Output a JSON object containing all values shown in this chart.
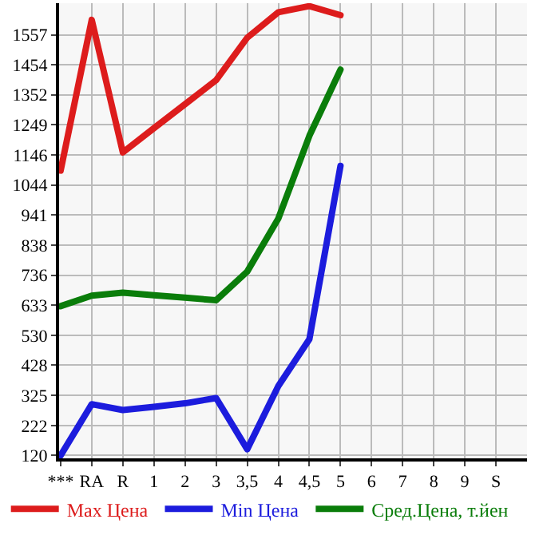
{
  "chart_data": {
    "type": "line",
    "categories": [
      "***",
      "RA",
      "R",
      "1",
      "2",
      "3",
      "3,5",
      "4",
      "4,5",
      "5",
      "6",
      "7",
      "8",
      "9",
      "S"
    ],
    "series": [
      {
        "name": "Max Цена",
        "color": "#dd1c1c",
        "values": [
          1093,
          1608,
          1155,
          1238,
          1320,
          1402,
          1547,
          1634,
          1655,
          1624,
          null,
          null,
          null,
          null,
          null
        ]
      },
      {
        "name": "Min Цена",
        "color": "#1c1cdd",
        "values": [
          120,
          295,
          275,
          286,
          298,
          316,
          141,
          357,
          517,
          1109,
          null,
          null,
          null,
          null,
          null
        ]
      },
      {
        "name": "Сред.Цена, т.йен",
        "color": "#0a7d0a",
        "values": [
          630,
          666,
          676,
          667,
          659,
          650,
          748,
          929,
          1212,
          1438,
          null,
          null,
          null,
          null,
          null
        ]
      }
    ],
    "ylim": [
      110,
      1665
    ],
    "yticks": [
      120,
      222,
      325,
      428,
      530,
      633,
      736,
      838,
      941,
      1044,
      1146,
      1249,
      1352,
      1454,
      1557
    ],
    "grid": true,
    "legend": "bottom",
    "marker": "none",
    "line_style": "solid"
  }
}
